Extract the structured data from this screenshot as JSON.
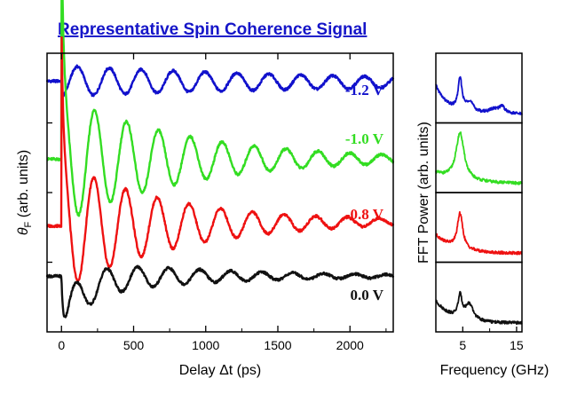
{
  "title": "Representative Spin Coherence Signal",
  "colors": {
    "title": "#1515c8",
    "axes": "#000000",
    "background": "#ffffff"
  },
  "chart_data": [
    {
      "type": "line",
      "name": "time-domain",
      "xlabel": "Delay Δt (ps)",
      "ylabel_symbol": "θ",
      "ylabel_sub": "F",
      "ylabel_rest": " (arb. units)",
      "xlim": [
        -100,
        2300
      ],
      "ylim": [
        0,
        100
      ],
      "x_ticks": [
        0,
        500,
        1000,
        1500,
        2000
      ],
      "grid": false,
      "series": [
        {
          "name": "-1.2 V",
          "color": "#1111cc",
          "offset": 90,
          "initial": 0,
          "dip": 0,
          "amp": 5.5,
          "tau": 2200,
          "freq": 0.00452,
          "phase": 3.14,
          "drift": -0.5
        },
        {
          "name": "-1.0 V",
          "color": "#33dd22",
          "offset": 62,
          "initial": 67,
          "dip": 0,
          "amp": 23,
          "tau": 850,
          "freq": 0.00452,
          "phase": -0.25,
          "drift": 0
        },
        {
          "name": "-0.8 V",
          "color": "#ee1111",
          "offset": 38,
          "initial": 50,
          "dip": 0,
          "amp": 23,
          "tau": 780,
          "freq": 0.00455,
          "phase": -0.15,
          "drift": 1.5
        },
        {
          "name": "0.0 V",
          "color": "#111111",
          "offset": 20,
          "initial": 22,
          "dip": 16,
          "amp": 7,
          "tau": 900,
          "freq": 0.00465,
          "phase": 3.4,
          "drift": 0
        }
      ]
    },
    {
      "type": "line",
      "name": "fft-spectra",
      "xlabel": "Frequency (GHz)",
      "ylabel": "FFT Power (arb. units)",
      "xlim": [
        0,
        16
      ],
      "x_ticks": [
        5,
        15
      ],
      "x_tick_labels": [
        "5",
        "15"
      ],
      "panels": [
        {
          "color": "#1111cc",
          "peaks": [
            {
              "f": 4.5,
              "a": 0.55,
              "w": 0.45
            },
            {
              "f": 6.3,
              "a": 0.18,
              "w": 0.8
            },
            {
              "f": 10.8,
              "a": 0.08,
              "w": 1.2
            },
            {
              "f": 12.3,
              "a": 0.12,
              "w": 0.6
            }
          ],
          "base": 0.5,
          "baseDecay": 2.2
        },
        {
          "color": "#33dd22",
          "peaks": [
            {
              "f": 4.5,
              "a": 0.82,
              "w": 0.9
            }
          ],
          "base": 0.18,
          "baseDecay": 5
        },
        {
          "color": "#ee1111",
          "peaks": [
            {
              "f": 4.5,
              "a": 0.62,
              "w": 0.6
            }
          ],
          "base": 0.32,
          "baseDecay": 3.5
        },
        {
          "color": "#111111",
          "peaks": [
            {
              "f": 4.5,
              "a": 0.38,
              "w": 0.45
            },
            {
              "f": 6.2,
              "a": 0.28,
              "w": 0.9
            }
          ],
          "base": 0.38,
          "baseDecay": 3
        }
      ]
    }
  ]
}
